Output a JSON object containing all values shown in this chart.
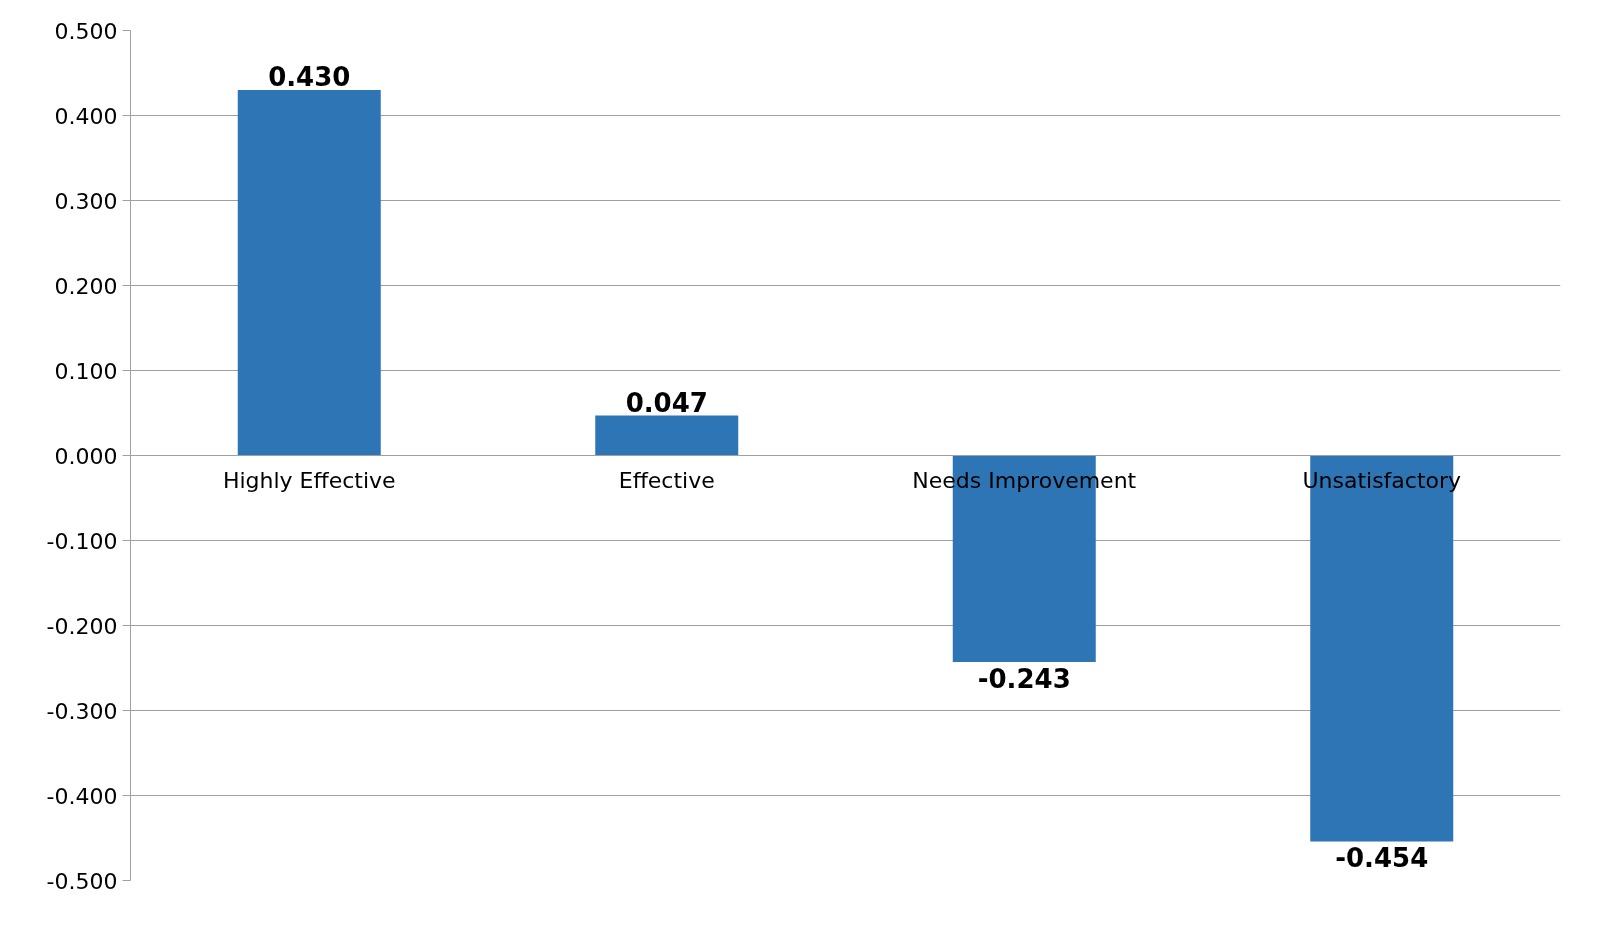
{
  "chart_data": {
    "type": "bar",
    "categories": [
      "Highly Effective",
      "Effective",
      "Needs Improvement",
      "Unsatisfactory"
    ],
    "values": [
      0.43,
      0.047,
      -0.243,
      -0.454
    ],
    "color": "#2e75b6",
    "value_labels": [
      "0.430",
      "0.047",
      "-0.243",
      "-0.454"
    ],
    "ylim": [
      -0.5,
      0.5
    ],
    "yticks": [
      {
        "value": -0.5,
        "label": "-0.500"
      },
      {
        "value": -0.4,
        "label": "-0.400"
      },
      {
        "value": -0.3,
        "label": "-0.300"
      },
      {
        "value": -0.2,
        "label": "-0.200"
      },
      {
        "value": -0.1,
        "label": "-0.100"
      },
      {
        "value": 0,
        "label": "0.000"
      },
      {
        "value": 0.1,
        "label": "0.100"
      },
      {
        "value": 0.2,
        "label": "0.200"
      },
      {
        "value": 0.3,
        "label": "0.300"
      },
      {
        "value": 0.4,
        "label": "0.400"
      },
      {
        "value": 0.5,
        "label": "0.500"
      }
    ],
    "grid": "y"
  }
}
